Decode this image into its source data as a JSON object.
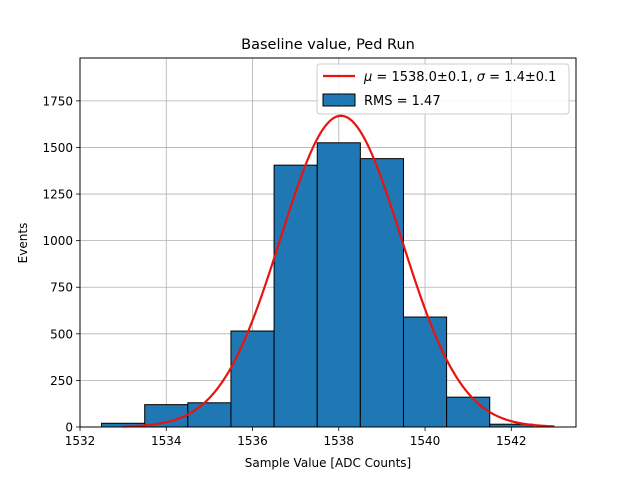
{
  "chart_data": {
    "type": "bar",
    "title": "Baseline value, Ped Run",
    "xlabel": "Sample Value [ADC Counts]",
    "ylabel": "Events",
    "xlim": [
      1532,
      1543.5
    ],
    "ylim": [
      0,
      1980
    ],
    "grid": true,
    "legend_placement": "top-right",
    "x_ticks": [
      {
        "value": 1532,
        "label": "1532"
      },
      {
        "value": 1534,
        "label": "1534"
      },
      {
        "value": 1536,
        "label": "1536"
      },
      {
        "value": 1538,
        "label": "1538"
      },
      {
        "value": 1540,
        "label": "1540"
      },
      {
        "value": 1542,
        "label": "1542"
      }
    ],
    "y_ticks": [
      {
        "value": 0,
        "label": "0"
      },
      {
        "value": 250,
        "label": "250"
      },
      {
        "value": 500,
        "label": "500"
      },
      {
        "value": 750,
        "label": "750"
      },
      {
        "value": 1000,
        "label": "1000"
      },
      {
        "value": 1250,
        "label": "1250"
      },
      {
        "value": 1500,
        "label": "1500"
      },
      {
        "value": 1750,
        "label": "1750"
      }
    ],
    "histogram": {
      "label": "RMS = 1.47",
      "color": "#1f77b4",
      "edgecolor": "#000000",
      "bin_edges": [
        1532.5,
        1533.5,
        1534.5,
        1535.5,
        1536.5,
        1537.5,
        1538.5,
        1539.5,
        1540.5,
        1541.5,
        1542.5
      ],
      "counts": [
        20,
        120,
        130,
        515,
        1405,
        1525,
        1440,
        590,
        160,
        15
      ]
    },
    "fit": {
      "label": "μ = 1538.0±0.1, σ = 1.4±0.1",
      "label_parts": {
        "mu_symbol": "μ",
        "mu_value": " = 1538.0±0.1, ",
        "sigma_symbol": "σ",
        "sigma_value": " = 1.4±0.1"
      },
      "color": "#e8140f",
      "type": "gaussian",
      "amplitude": 1670,
      "mu": 1538.05,
      "sigma": 1.4,
      "x_range": [
        1533,
        1543
      ]
    }
  }
}
